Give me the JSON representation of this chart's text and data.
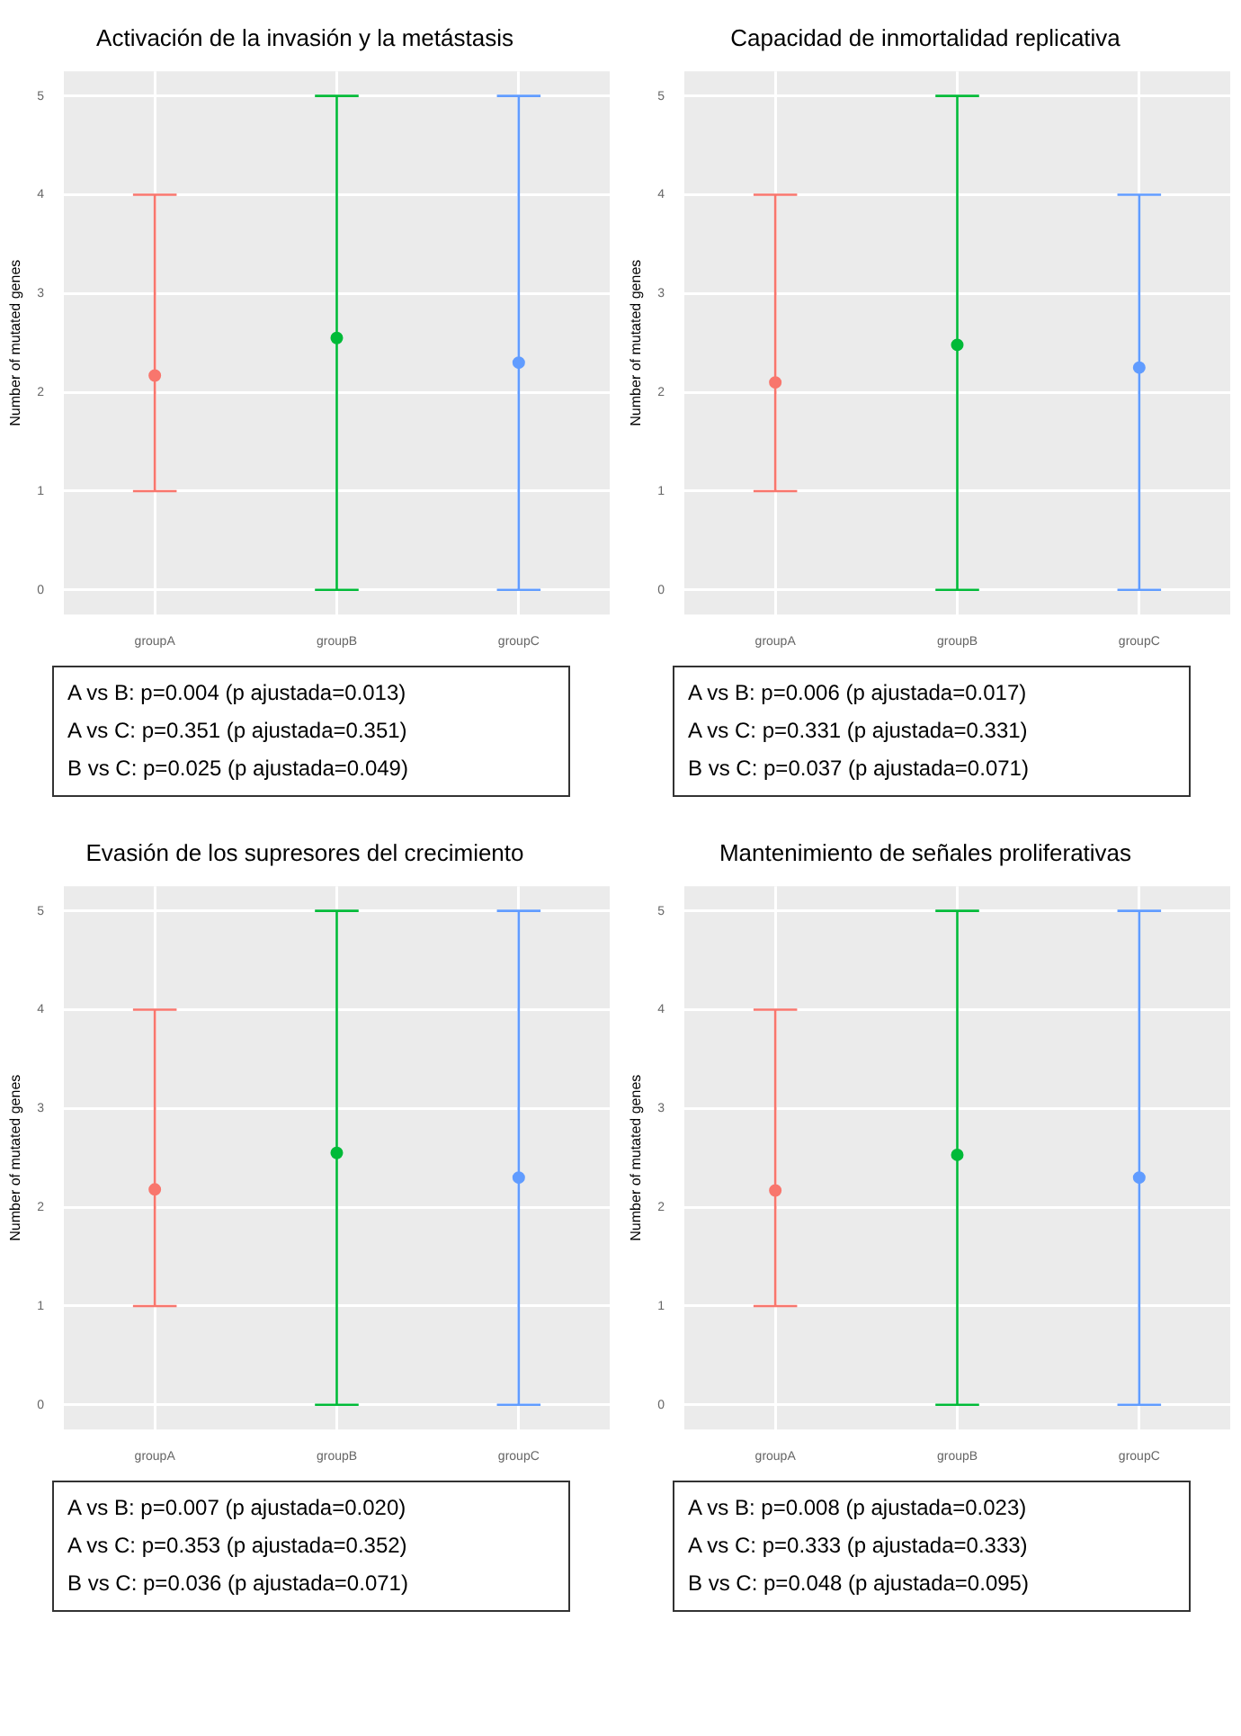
{
  "chart_data": [
    {
      "type": "scatter",
      "title": "Activación de la invasión y la metástasis",
      "ylabel": "Number of mutated genes",
      "categories": [
        "groupA",
        "groupB",
        "groupC"
      ],
      "values": [
        2.17,
        2.55,
        2.3
      ],
      "errors": [
        [
          1,
          4
        ],
        [
          0,
          5
        ],
        [
          0,
          5
        ]
      ],
      "colors": [
        "#f8766d",
        "#00ba38",
        "#619cff"
      ],
      "ylim": [
        -0.25,
        5.25
      ],
      "yticks": [
        0,
        1,
        2,
        3,
        4,
        5
      ],
      "grid": true,
      "marker": "circle",
      "annotations": [
        "A vs B: p=0.004 (p ajustada=0.013)",
        "A vs C: p=0.351 (p ajustada=0.351)",
        "B vs C: p=0.025 (p ajustada=0.049)"
      ]
    },
    {
      "type": "scatter",
      "title": "Capacidad de inmortalidad replicativa",
      "ylabel": "Number of mutated genes",
      "categories": [
        "groupA",
        "groupB",
        "groupC"
      ],
      "values": [
        2.1,
        2.48,
        2.25
      ],
      "errors": [
        [
          1,
          4
        ],
        [
          0,
          5
        ],
        [
          0,
          4
        ]
      ],
      "colors": [
        "#f8766d",
        "#00ba38",
        "#619cff"
      ],
      "ylim": [
        -0.25,
        5.25
      ],
      "yticks": [
        0,
        1,
        2,
        3,
        4,
        5
      ],
      "grid": true,
      "marker": "circle",
      "annotations": [
        "A vs B: p=0.006 (p ajustada=0.017)",
        "A vs C: p=0.331 (p ajustada=0.331)",
        "B vs C: p=0.037 (p ajustada=0.071)"
      ]
    },
    {
      "type": "scatter",
      "title": "Evasión de los supresores del crecimiento",
      "ylabel": "Number of mutated genes",
      "categories": [
        "groupA",
        "groupB",
        "groupC"
      ],
      "values": [
        2.18,
        2.55,
        2.3
      ],
      "errors": [
        [
          1,
          4
        ],
        [
          0,
          5
        ],
        [
          0,
          5
        ]
      ],
      "colors": [
        "#f8766d",
        "#00ba38",
        "#619cff"
      ],
      "ylim": [
        -0.25,
        5.25
      ],
      "yticks": [
        0,
        1,
        2,
        3,
        4,
        5
      ],
      "grid": true,
      "marker": "circle",
      "annotations": [
        "A vs B: p=0.007 (p ajustada=0.020)",
        "A vs C: p=0.353 (p ajustada=0.352)",
        "B vs C: p=0.036 (p ajustada=0.071)"
      ]
    },
    {
      "type": "scatter",
      "title": "Mantenimiento de señales proliferativas",
      "ylabel": "Number of mutated genes",
      "categories": [
        "groupA",
        "groupB",
        "groupC"
      ],
      "values": [
        2.17,
        2.53,
        2.3
      ],
      "errors": [
        [
          1,
          4
        ],
        [
          0,
          5
        ],
        [
          0,
          5
        ]
      ],
      "colors": [
        "#f8766d",
        "#00ba38",
        "#619cff"
      ],
      "ylim": [
        -0.25,
        5.25
      ],
      "yticks": [
        0,
        1,
        2,
        3,
        4,
        5
      ],
      "grid": true,
      "marker": "circle",
      "annotations": [
        "A vs B: p=0.008 (p ajustada=0.023)",
        "A vs C: p=0.333 (p ajustada=0.333)",
        "B vs C: p=0.048 (p ajustada=0.095)"
      ]
    }
  ]
}
